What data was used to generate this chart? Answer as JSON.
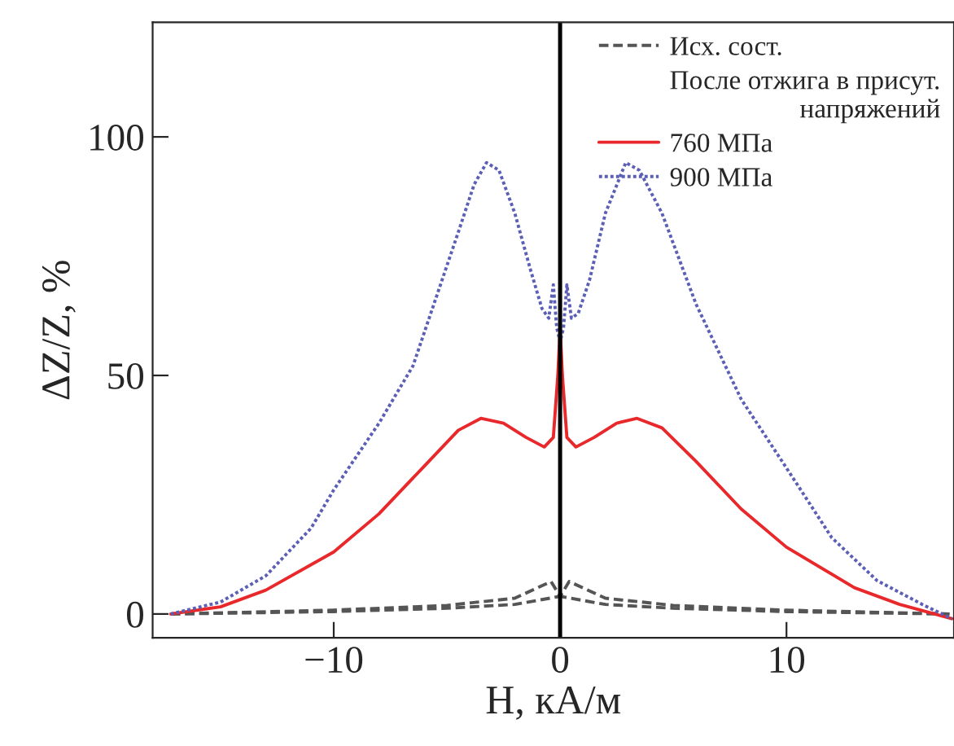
{
  "chart_data": {
    "type": "line",
    "xlabel": "H, кА/м",
    "ylabel": "ΔZ/Z, %",
    "legend_title": "После отжига в присут.\nнапряжений",
    "legend": "top right",
    "grid": false,
    "xlim": [
      -18,
      17.4
    ],
    "ylim": [
      -5,
      124
    ],
    "xticks": [
      {
        "value": -10,
        "label": "−10"
      },
      0,
      10
    ],
    "yticks": [
      0,
      50,
      100
    ],
    "ref_lines": [
      {
        "axis": "x",
        "value": 0,
        "color": "#000000",
        "line_style": "solid"
      }
    ],
    "series": [
      {
        "name": "Исх. сост.",
        "color": "#555555",
        "line_style": "dashed",
        "x": [
          -17.2,
          -10,
          -5,
          -2,
          -0.4,
          0,
          2,
          5,
          10,
          17.2
        ],
        "values": [
          0,
          0.8,
          1.8,
          3.3,
          6.8,
          3.7,
          2,
          1.2,
          0.5,
          0
        ]
      },
      {
        "color": "#555555",
        "line_style": "dashed",
        "x": [
          -17.2,
          -10,
          -5,
          -2,
          0,
          0.4,
          2,
          5,
          10,
          17.2
        ],
        "values": [
          0,
          0.5,
          1.2,
          2,
          3.7,
          6.8,
          3.3,
          1.8,
          0.8,
          0
        ]
      },
      {
        "name": "760 МПа",
        "color": "#e8282a",
        "line_style": "solid",
        "x": [
          -17.2,
          -15,
          -13,
          -10,
          -8,
          -6,
          -4.5,
          -3.5,
          -2.5,
          -1.5,
          -0.7,
          -0.3,
          -0.1,
          0,
          0.1,
          0.3,
          0.7,
          1.5,
          2.5,
          3.4,
          4.5,
          6,
          8,
          10,
          13,
          15,
          17.3
        ],
        "values": [
          0,
          1.5,
          5,
          13,
          21,
          31,
          38.5,
          41,
          40,
          37,
          35,
          37,
          50,
          60,
          50,
          37,
          35,
          37,
          40,
          41,
          39,
          32,
          22,
          14,
          5.5,
          2,
          -1
        ]
      },
      {
        "name": "900 МПа",
        "color": "#5b5fb5",
        "line_style": "dotted",
        "x": [
          -17.2,
          -15,
          -13,
          -11,
          -10,
          -8,
          -6.5,
          -5.5,
          -4.5,
          -3.8,
          -3.25,
          -2.7,
          -2,
          -1.3,
          -0.8,
          -0.5,
          -0.3,
          -0.15,
          0,
          0.15,
          0.3,
          0.5,
          0.8,
          1.3,
          2,
          2.9,
          3.5,
          4.5,
          6,
          8,
          10,
          12,
          14,
          16,
          17.3
        ],
        "values": [
          0,
          2.5,
          8,
          18,
          26,
          40,
          52,
          66,
          80,
          90,
          94.6,
          93,
          84,
          72,
          64,
          62,
          69,
          60,
          57,
          60,
          69,
          62,
          63,
          70,
          84,
          94.6,
          93,
          84,
          65,
          45,
          30.6,
          16,
          7,
          2,
          -1
        ]
      }
    ]
  }
}
